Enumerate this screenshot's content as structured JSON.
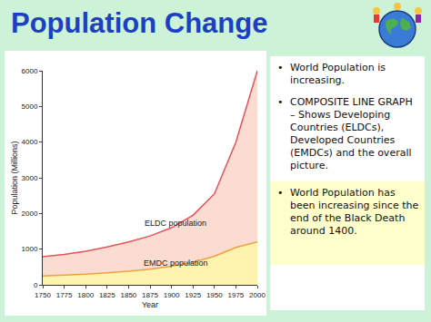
{
  "slide": {
    "title": "Population Change",
    "bullets": [
      "World Population is increasing.",
      "COMPOSITE LINE GRAPH – Shows Developing Countries (ELDCs), Developed Countries (EMDCs) and the overall picture.",
      "World Population has been increasing since the end of the Black Death around 1400."
    ]
  },
  "chart_data": {
    "type": "area",
    "x": [
      1750,
      1775,
      1800,
      1825,
      1850,
      1875,
      1900,
      1925,
      1950,
      1975,
      2000
    ],
    "series": [
      {
        "name": "EMDC population",
        "color": "#f0a040",
        "values": [
          250,
          270,
          300,
          340,
          380,
          440,
          520,
          630,
          800,
          1050,
          1200
        ]
      },
      {
        "name": "ELDC population",
        "color": "#e8505a",
        "values": [
          540,
          580,
          640,
          720,
          820,
          930,
          1080,
          1320,
          1750,
          2950,
          4800
        ]
      }
    ],
    "stacked": true,
    "x_label": "Year",
    "y_label": "Population (Millions)",
    "xlim": [
      1750,
      2000
    ],
    "ylim": [
      0,
      6000
    ],
    "xticks": [
      1750,
      1775,
      1800,
      1825,
      1850,
      1875,
      1900,
      1925,
      1950,
      1975,
      2000
    ],
    "yticks": [
      0,
      1000,
      2000,
      3000,
      4000,
      5000,
      6000
    ],
    "grid": false
  }
}
